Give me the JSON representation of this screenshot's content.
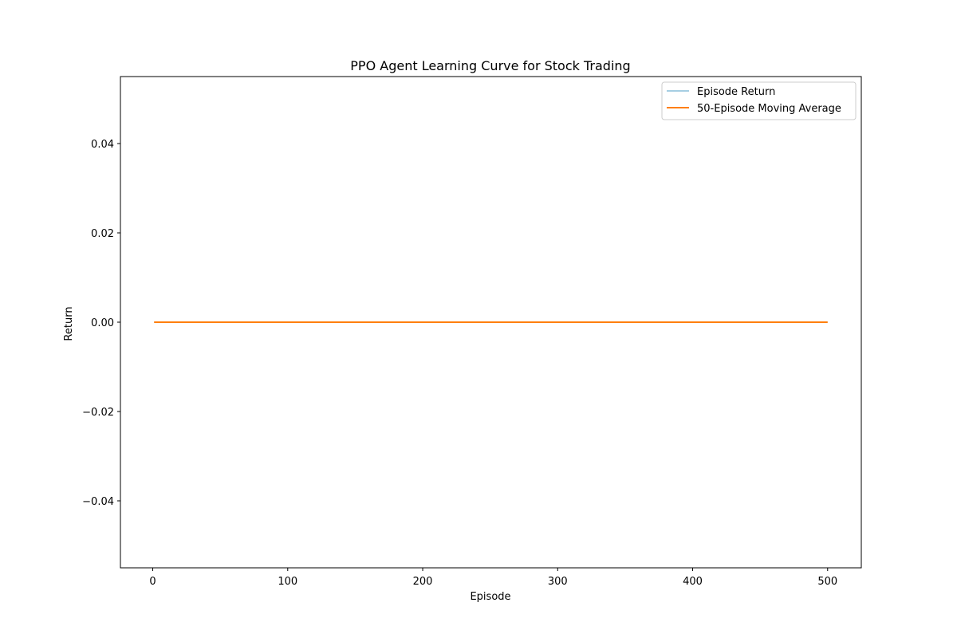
{
  "chart_data": {
    "type": "line",
    "title": "PPO Agent Learning Curve for Stock Trading",
    "xlabel": "Episode",
    "ylabel": "Return",
    "xlim": [
      -23.95,
      524.95
    ],
    "ylim": [
      -0.055,
      0.055
    ],
    "x_ticks": [
      0,
      100,
      200,
      300,
      400,
      500
    ],
    "x_tick_labels": [
      "0",
      "100",
      "200",
      "300",
      "400",
      "500"
    ],
    "y_ticks": [
      0.04,
      0.02,
      0.0,
      -0.02,
      -0.04
    ],
    "y_tick_labels": [
      "0.04",
      "0.02",
      "0.00",
      "−0.02",
      "−0.04"
    ],
    "grid": false,
    "legend_position": "upper-right",
    "series": [
      {
        "name": "Episode Return",
        "color": "#a6cee3",
        "x_range": [
          1,
          500
        ],
        "value": 0.0
      },
      {
        "name": "50-Episode Moving Average",
        "color": "#ff7f0e",
        "x_range": [
          1,
          500
        ],
        "value": 0.0
      }
    ]
  }
}
